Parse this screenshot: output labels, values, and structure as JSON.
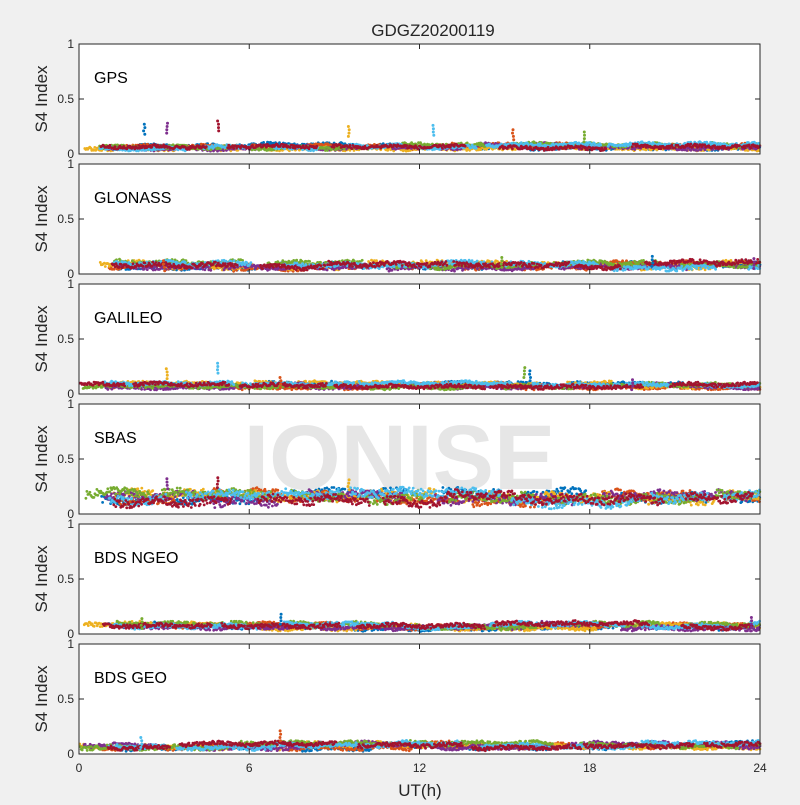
{
  "figure": {
    "title": "GDGZ20200119",
    "xlabel": "UT(h)",
    "watermark": "IONISE",
    "background": "#f0f0f0",
    "axes_background": "#ffffff",
    "series_colors": [
      "#0072bd",
      "#d95319",
      "#edb120",
      "#7e2f8e",
      "#77ac30",
      "#4dbeee",
      "#a2142f"
    ]
  },
  "chart_data": {
    "type": "scatter",
    "title": "GDGZ20200119",
    "xlabel": "UT(h)",
    "xlim": [
      0,
      24
    ],
    "xticks": [
      0,
      6,
      12,
      18,
      24
    ],
    "grid": false,
    "panels": [
      {
        "name": "GPS",
        "ylabel": "S4 Index",
        "ylim": [
          0,
          1
        ],
        "yticks": [
          0,
          0.5,
          1
        ],
        "baseline": [
          0.03,
          0.1
        ],
        "spikes": [
          {
            "x": 2.3,
            "y": 0.27
          },
          {
            "x": 3.1,
            "y": 0.28
          },
          {
            "x": 4.9,
            "y": 0.3
          },
          {
            "x": 9.5,
            "y": 0.25
          },
          {
            "x": 12.5,
            "y": 0.26
          },
          {
            "x": 15.3,
            "y": 0.22
          },
          {
            "x": 17.8,
            "y": 0.2
          }
        ]
      },
      {
        "name": "GLONASS",
        "ylabel": "S4 Index",
        "ylim": [
          0,
          1
        ],
        "yticks": [
          0,
          0.5,
          1
        ],
        "baseline": [
          0.03,
          0.12
        ],
        "spikes": [
          {
            "x": 3.0,
            "y": 0.12
          },
          {
            "x": 14.9,
            "y": 0.15
          },
          {
            "x": 20.2,
            "y": 0.16
          },
          {
            "x": 23.8,
            "y": 0.14
          }
        ]
      },
      {
        "name": "GALILEO",
        "ylabel": "S4 Index",
        "ylim": [
          0,
          1
        ],
        "yticks": [
          0,
          0.5,
          1
        ],
        "baseline": [
          0.04,
          0.11
        ],
        "spikes": [
          {
            "x": 3.1,
            "y": 0.23
          },
          {
            "x": 4.9,
            "y": 0.28
          },
          {
            "x": 7.1,
            "y": 0.15
          },
          {
            "x": 15.7,
            "y": 0.24
          },
          {
            "x": 15.9,
            "y": 0.21
          },
          {
            "x": 19.5,
            "y": 0.13
          }
        ]
      },
      {
        "name": "SBAS",
        "ylabel": "S4 Index",
        "ylim": [
          0,
          1
        ],
        "yticks": [
          0,
          0.5,
          1
        ],
        "baseline": [
          0.06,
          0.22
        ],
        "spikes": [
          {
            "x": 3.1,
            "y": 0.32
          },
          {
            "x": 4.9,
            "y": 0.33
          },
          {
            "x": 9.5,
            "y": 0.31
          }
        ]
      },
      {
        "name": "BDS NGEO",
        "ylabel": "S4 Index",
        "ylim": [
          0,
          1
        ],
        "yticks": [
          0,
          0.5,
          1
        ],
        "baseline": [
          0.03,
          0.11
        ],
        "spikes": [
          {
            "x": 2.2,
            "y": 0.14
          },
          {
            "x": 7.1,
            "y": 0.18
          },
          {
            "x": 23.7,
            "y": 0.15
          }
        ]
      },
      {
        "name": "BDS GEO",
        "ylabel": "S4 Index",
        "ylim": [
          0,
          1
        ],
        "yticks": [
          0,
          0.5,
          1
        ],
        "baseline": [
          0.03,
          0.11
        ],
        "spikes": [
          {
            "x": 2.2,
            "y": 0.15
          },
          {
            "x": 7.1,
            "y": 0.21
          }
        ]
      }
    ]
  }
}
